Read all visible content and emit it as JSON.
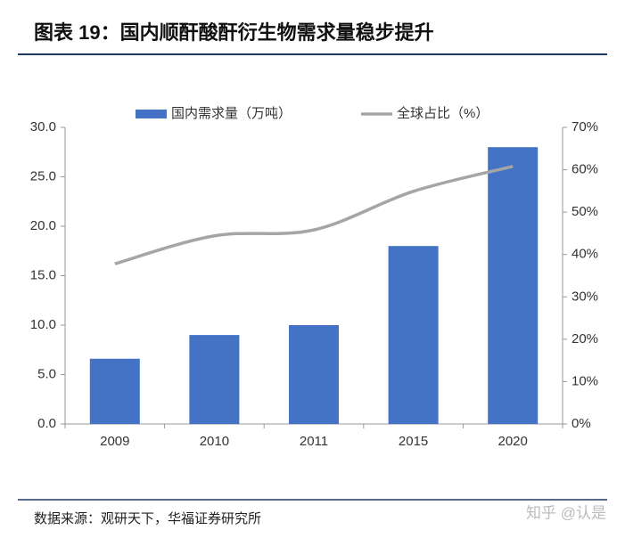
{
  "chart_data": {
    "type": "bar_line",
    "title": "图表 19：国内顺酐酸酐衍生物需求量稳步提升",
    "source": "数据来源：观研天下，华福证券研究所",
    "watermark": "知乎 @认是",
    "categories": [
      "2009",
      "2010",
      "2011",
      "2015",
      "2020"
    ],
    "series": [
      {
        "name": "国内需求量（万吨）",
        "color": "#4472c4",
        "type": "bar",
        "values": [
          6.6,
          9.0,
          10.0,
          18.0,
          28.0
        ]
      },
      {
        "name": "全球占比（%）",
        "color": "#a5a5a5",
        "type": "line",
        "axis": "y2",
        "values": [
          37.8,
          44.4,
          45.8,
          54.9,
          60.8
        ]
      }
    ],
    "ylim": [
      0,
      30
    ],
    "yticks": [
      {
        "value": 0,
        "label": "0.0"
      },
      {
        "value": 5,
        "label": "5.0"
      },
      {
        "value": 10,
        "label": "10.0"
      },
      {
        "value": 15,
        "label": "15.0"
      },
      {
        "value": 20,
        "label": "20.0"
      },
      {
        "value": 25,
        "label": "25.0"
      },
      {
        "value": 30,
        "label": "30.0"
      }
    ],
    "y2lim": [
      0,
      70
    ],
    "y2ticks": [
      {
        "value": 0,
        "label": "0%"
      },
      {
        "value": 10,
        "label": "10%"
      },
      {
        "value": 20,
        "label": "20%"
      },
      {
        "value": 30,
        "label": "30%"
      },
      {
        "value": 40,
        "label": "40%"
      },
      {
        "value": 50,
        "label": "50%"
      },
      {
        "value": 60,
        "label": "60%"
      },
      {
        "value": 70,
        "label": "70%"
      }
    ],
    "legend": "top",
    "grid": false
  }
}
